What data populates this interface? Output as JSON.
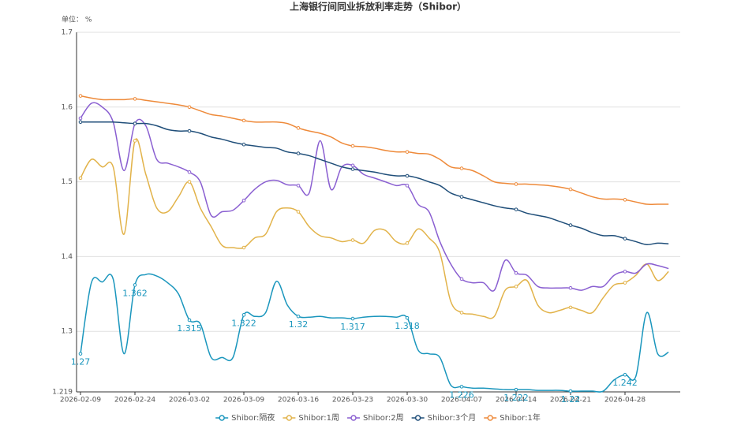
{
  "chart_data": {
    "type": "line",
    "title": "上海银行间同业拆放利率走势（Shibor）",
    "y_label": "单位： %",
    "categories": [
      "2026-02-09",
      null,
      null,
      null,
      null,
      "2026-02-24",
      null,
      null,
      null,
      null,
      "2026-03-02",
      null,
      null,
      null,
      null,
      "2026-03-09",
      null,
      null,
      null,
      null,
      "2026-03-16",
      null,
      null,
      null,
      null,
      "2026-03-23",
      null,
      null,
      null,
      null,
      "2026-03-30",
      null,
      null,
      null,
      null,
      "2026-04-07",
      null,
      null,
      null,
      null,
      "2026-04-14",
      null,
      null,
      null,
      null,
      "2026-04-21",
      null,
      null,
      null,
      null,
      "2026-04-28",
      null,
      null,
      null,
      null
    ],
    "ylim": [
      1.219,
      1.7
    ],
    "yticks": [
      1.219,
      1.3,
      1.4,
      1.5,
      1.6,
      1.7
    ],
    "grid": true,
    "legend": "bottom",
    "series": [
      {
        "name": "Shibor:隔夜",
        "color": "#1a96bd",
        "values": [
          1.27,
          1.365,
          1.366,
          1.37,
          1.27,
          1.362,
          1.376,
          1.374,
          1.365,
          1.35,
          1.315,
          1.31,
          1.265,
          1.265,
          1.265,
          1.322,
          1.32,
          1.325,
          1.367,
          1.335,
          1.32,
          1.319,
          1.32,
          1.318,
          1.318,
          1.317,
          1.319,
          1.32,
          1.32,
          1.319,
          1.318,
          1.275,
          1.27,
          1.265,
          1.228,
          1.226,
          1.224,
          1.224,
          1.223,
          1.222,
          1.222,
          1.222,
          1.221,
          1.221,
          1.221,
          1.22,
          1.22,
          1.22,
          1.22,
          1.235,
          1.242,
          1.24,
          1.325,
          1.27,
          1.272
        ]
      },
      {
        "name": "Shibor:1周",
        "color": "#e2b34a",
        "values": [
          1.505,
          1.53,
          1.52,
          1.52,
          1.43,
          1.555,
          1.51,
          1.465,
          1.46,
          1.48,
          1.5,
          1.465,
          1.44,
          1.415,
          1.412,
          1.412,
          1.425,
          1.43,
          1.46,
          1.465,
          1.46,
          1.44,
          1.428,
          1.425,
          1.42,
          1.422,
          1.418,
          1.435,
          1.435,
          1.42,
          1.418,
          1.437,
          1.425,
          1.405,
          1.34,
          1.325,
          1.323,
          1.32,
          1.32,
          1.355,
          1.36,
          1.368,
          1.335,
          1.325,
          1.328,
          1.332,
          1.328,
          1.325,
          1.345,
          1.362,
          1.365,
          1.375,
          1.39,
          1.368,
          1.38
        ]
      },
      {
        "name": "Shibor:2周",
        "color": "#8a5fd1",
        "values": [
          1.585,
          1.605,
          1.6,
          1.58,
          1.515,
          1.578,
          1.575,
          1.53,
          1.525,
          1.52,
          1.513,
          1.5,
          1.455,
          1.46,
          1.462,
          1.475,
          1.49,
          1.5,
          1.502,
          1.496,
          1.495,
          1.485,
          1.555,
          1.49,
          1.52,
          1.522,
          1.51,
          1.505,
          1.5,
          1.495,
          1.495,
          1.47,
          1.46,
          1.42,
          1.39,
          1.37,
          1.365,
          1.365,
          1.355,
          1.395,
          1.378,
          1.375,
          1.36,
          1.358,
          1.358,
          1.358,
          1.355,
          1.36,
          1.36,
          1.375,
          1.38,
          1.378,
          1.39,
          1.388,
          1.384
        ]
      },
      {
        "name": "Shibor:3个月",
        "color": "#1f4e79",
        "values": [
          1.58,
          1.58,
          1.58,
          1.58,
          1.579,
          1.578,
          1.578,
          1.575,
          1.57,
          1.568,
          1.568,
          1.565,
          1.56,
          1.557,
          1.553,
          1.55,
          1.548,
          1.546,
          1.545,
          1.54,
          1.538,
          1.535,
          1.53,
          1.525,
          1.52,
          1.517,
          1.515,
          1.513,
          1.51,
          1.508,
          1.508,
          1.505,
          1.5,
          1.495,
          1.485,
          1.48,
          1.476,
          1.472,
          1.468,
          1.465,
          1.463,
          1.458,
          1.455,
          1.452,
          1.447,
          1.442,
          1.438,
          1.432,
          1.428,
          1.428,
          1.424,
          1.42,
          1.416,
          1.418,
          1.417
        ]
      },
      {
        "name": "Shibor:1年",
        "color": "#ee8a3a",
        "values": [
          1.615,
          1.612,
          1.61,
          1.61,
          1.61,
          1.611,
          1.609,
          1.607,
          1.605,
          1.603,
          1.6,
          1.595,
          1.59,
          1.588,
          1.585,
          1.582,
          1.58,
          1.58,
          1.58,
          1.578,
          1.572,
          1.568,
          1.565,
          1.56,
          1.552,
          1.548,
          1.547,
          1.545,
          1.542,
          1.54,
          1.54,
          1.538,
          1.537,
          1.53,
          1.52,
          1.518,
          1.515,
          1.508,
          1.5,
          1.498,
          1.497,
          1.497,
          1.496,
          1.495,
          1.493,
          1.49,
          1.485,
          1.48,
          1.477,
          1.477,
          1.476,
          1.473,
          1.47,
          1.47,
          1.47
        ]
      }
    ]
  }
}
